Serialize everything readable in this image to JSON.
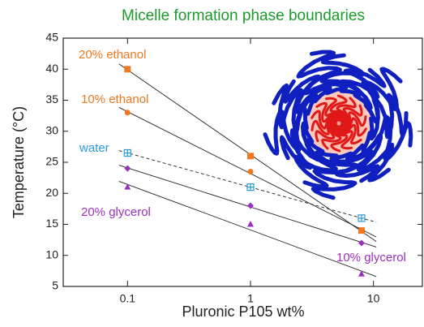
{
  "chart_data": {
    "type": "scatter",
    "title": "Micelle formation phase boundaries",
    "x_label": "Pluronic P105 wt%",
    "y_label": "Temperature (°C)",
    "x": [
      0.1,
      1,
      8
    ],
    "xlim": [
      0.03,
      25
    ],
    "xticks": [
      0.1,
      1,
      10
    ],
    "x_log": true,
    "ylim": [
      5,
      45
    ],
    "yticks": [
      5,
      10,
      15,
      20,
      25,
      30,
      35,
      40,
      45
    ],
    "series": [
      {
        "name": "20% ethanol",
        "color": "#f07820",
        "marker": "square",
        "line": "solid",
        "values": [
          40,
          26,
          14
        ]
      },
      {
        "name": "10% ethanol",
        "color": "#f07820",
        "marker": "circle",
        "line": "solid",
        "values": [
          33,
          23.5,
          14
        ]
      },
      {
        "name": "water",
        "color": "#2a9ad8",
        "marker": "crossed-square",
        "line": "dashed",
        "values": [
          26.5,
          21,
          16
        ]
      },
      {
        "name": "10% glycerol",
        "color": "#9a30c0",
        "marker": "diamond",
        "line": "solid",
        "values": [
          24,
          18,
          12
        ]
      },
      {
        "name": "20% glycerol",
        "color": "#9a30c0",
        "marker": "triangle",
        "line": "solid",
        "values": [
          21,
          15,
          7
        ]
      }
    ]
  }
}
